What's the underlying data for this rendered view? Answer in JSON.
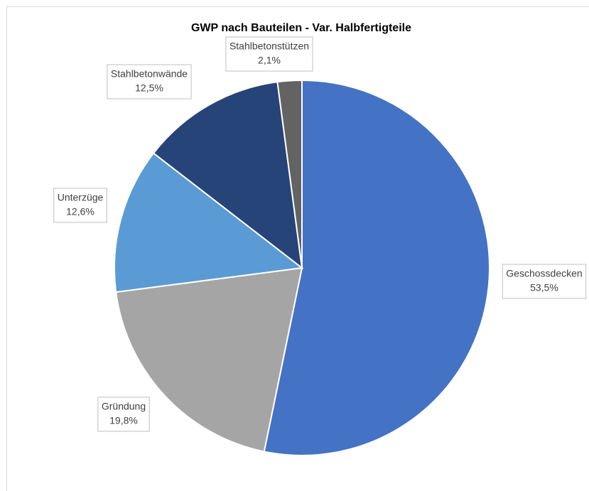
{
  "chart_data": {
    "type": "pie",
    "title": "GWP nach Bauteilen - Var. Halbfertigteile",
    "categories": [
      "Geschossdecken",
      "Gründung",
      "Unterzüge",
      "Stahlbetonwände",
      "Stahlbetonstützen"
    ],
    "values": [
      53.5,
      19.8,
      12.6,
      12.5,
      2.1
    ],
    "value_labels": [
      "53,5%",
      "19,8%",
      "12,6%",
      "12,5%",
      "2,1%"
    ],
    "colors": [
      "#4472c4",
      "#a5a5a5",
      "#5b9bd5",
      "#264478",
      "#636363"
    ]
  }
}
